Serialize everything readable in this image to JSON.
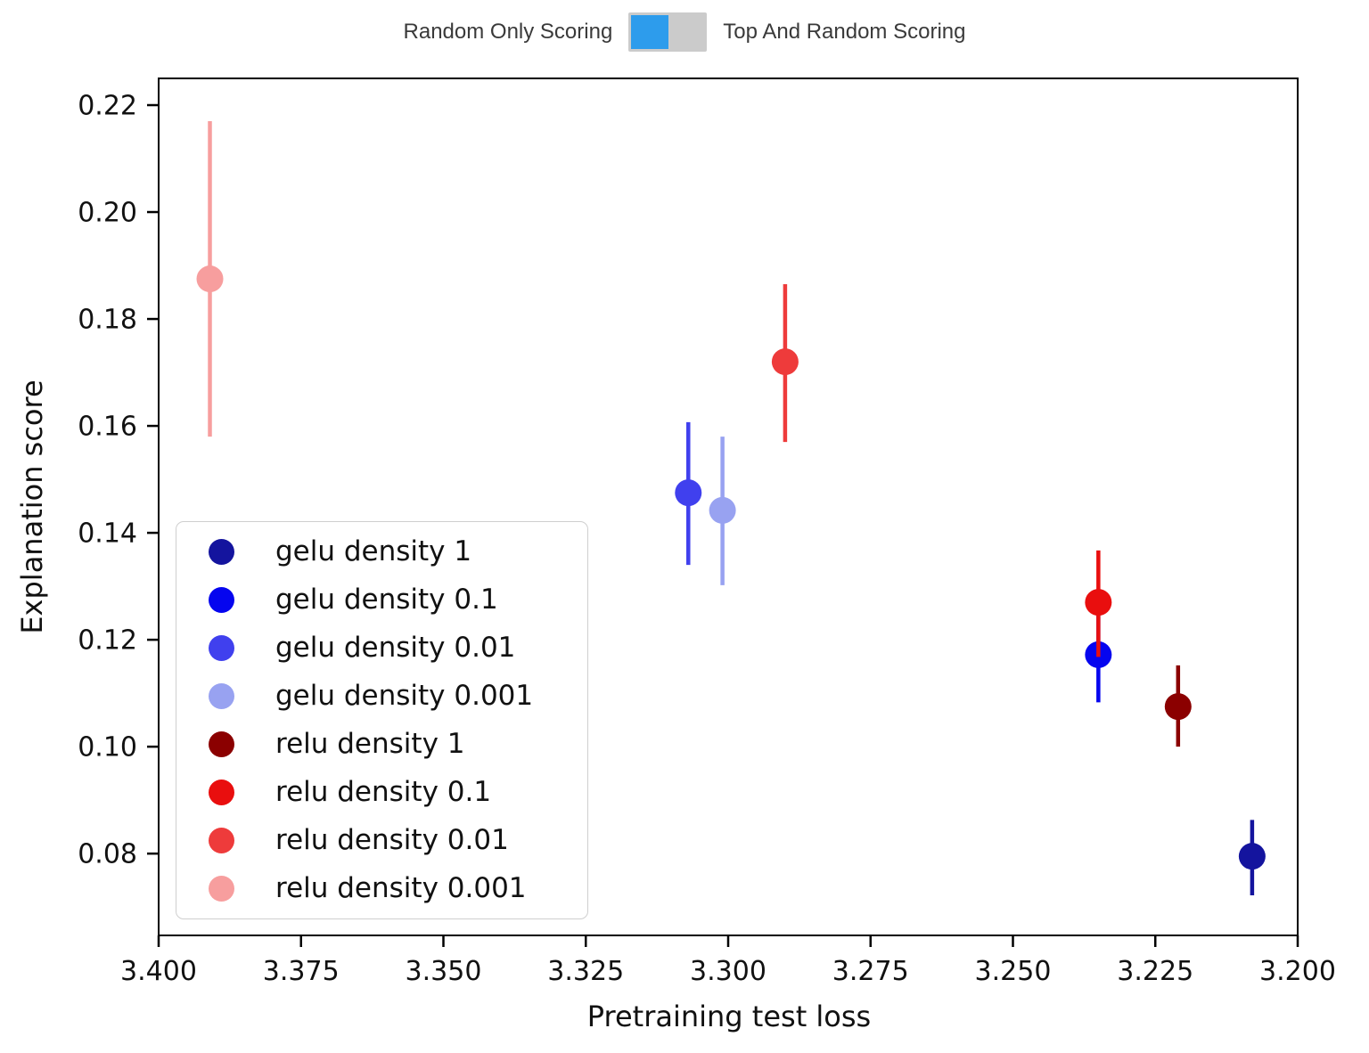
{
  "toggle": {
    "left_label": "Random Only Scoring",
    "right_label": "Top And Random Scoring",
    "selected": "Random Only Scoring",
    "active_color": "#2D9CEC",
    "track_color": "#CBCBCB"
  },
  "chart_data": {
    "type": "scatter",
    "title": "",
    "xlabel": "Pretraining test loss",
    "ylabel": "Explanation score",
    "x_axis_reversed": true,
    "xlim": [
      3.4,
      3.2
    ],
    "ylim": [
      0.0647,
      0.225
    ],
    "grid": false,
    "x_ticks": [
      3.4,
      3.375,
      3.35,
      3.325,
      3.3,
      3.275,
      3.25,
      3.225,
      3.2
    ],
    "x_tick_labels": [
      "3.400",
      "3.375",
      "3.350",
      "3.325",
      "3.300",
      "3.275",
      "3.250",
      "3.225",
      "3.200"
    ],
    "y_ticks": [
      0.22,
      0.2,
      0.18,
      0.16,
      0.14,
      0.12,
      0.1,
      0.08
    ],
    "y_tick_labels": [
      "0.22",
      "0.20",
      "0.18",
      "0.16",
      "0.14",
      "0.12",
      "0.10",
      "0.08"
    ],
    "legend_position": "lower-left",
    "series": [
      {
        "name": "gelu density 1",
        "color": "#14149E",
        "x": 3.208,
        "y": 0.0795,
        "err_lo": 0.0722,
        "err_hi": 0.0863
      },
      {
        "name": "gelu density 0.1",
        "color": "#0505EF",
        "x": 3.235,
        "y": 0.1172,
        "err_lo": 0.1083,
        "err_hi": 0.126
      },
      {
        "name": "gelu density 0.01",
        "color": "#4040EE",
        "x": 3.307,
        "y": 0.1475,
        "err_lo": 0.134,
        "err_hi": 0.1607
      },
      {
        "name": "gelu density 0.001",
        "color": "#98A2F1",
        "x": 3.301,
        "y": 0.1442,
        "err_lo": 0.1302,
        "err_hi": 0.158
      },
      {
        "name": "relu density 1",
        "color": "#8B0000",
        "x": 3.221,
        "y": 0.1075,
        "err_lo": 0.1,
        "err_hi": 0.1152
      },
      {
        "name": "relu density 0.1",
        "color": "#E90E0E",
        "x": 3.235,
        "y": 0.127,
        "err_lo": 0.1168,
        "err_hi": 0.1367
      },
      {
        "name": "relu density 0.01",
        "color": "#EE3B3B",
        "x": 3.29,
        "y": 0.172,
        "err_lo": 0.157,
        "err_hi": 0.1865
      },
      {
        "name": "relu density 0.001",
        "color": "#F79E9E",
        "x": 3.391,
        "y": 0.1875,
        "err_lo": 0.158,
        "err_hi": 0.217
      }
    ]
  }
}
